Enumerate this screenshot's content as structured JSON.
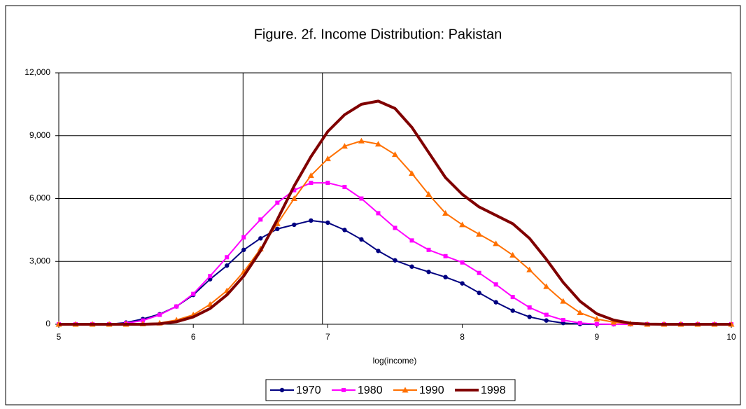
{
  "chart_data": {
    "type": "line",
    "title": "Figure. 2f. Income Distribution: Pakistan",
    "x_label": "log(income)",
    "x": [
      5,
      5.125,
      5.25,
      5.375,
      5.5,
      5.625,
      5.75,
      5.875,
      6,
      6.125,
      6.25,
      6.375,
      6.5,
      6.625,
      6.75,
      6.875,
      7,
      7.125,
      7.25,
      7.375,
      7.5,
      7.625,
      7.75,
      7.875,
      8,
      8.125,
      8.25,
      8.375,
      8.5,
      8.625,
      8.75,
      8.875,
      9,
      9.125,
      9.25,
      9.375,
      9.5,
      9.625,
      9.75,
      9.875,
      10
    ],
    "series": [
      {
        "name": "1970",
        "color": "#000080",
        "marker": "circle",
        "values": [
          0,
          0,
          0,
          0,
          80,
          250,
          480,
          850,
          1400,
          2150,
          2800,
          3550,
          4100,
          4550,
          4750,
          4950,
          4850,
          4500,
          4050,
          3500,
          3050,
          2750,
          2500,
          2250,
          1950,
          1500,
          1050,
          650,
          350,
          180,
          60,
          10,
          0,
          0,
          0,
          0,
          0,
          0,
          0,
          0,
          0
        ]
      },
      {
        "name": "1980",
        "color": "#ff00ff",
        "marker": "square",
        "values": [
          0,
          0,
          0,
          0,
          50,
          180,
          450,
          850,
          1450,
          2300,
          3200,
          4150,
          5000,
          5800,
          6400,
          6750,
          6750,
          6550,
          6000,
          5300,
          4600,
          4000,
          3550,
          3250,
          2950,
          2450,
          1900,
          1300,
          800,
          450,
          200,
          60,
          10,
          0,
          0,
          0,
          0,
          0,
          0,
          0,
          0
        ]
      },
      {
        "name": "1990",
        "color": "#ff7000",
        "marker": "triangle",
        "values": [
          0,
          0,
          0,
          0,
          0,
          20,
          60,
          200,
          450,
          950,
          1600,
          2500,
          3600,
          4800,
          6000,
          7100,
          7900,
          8500,
          8750,
          8600,
          8100,
          7200,
          6200,
          5300,
          4750,
          4300,
          3850,
          3300,
          2600,
          1800,
          1100,
          550,
          250,
          100,
          30,
          0,
          0,
          0,
          0,
          0,
          0
        ]
      },
      {
        "name": "1998",
        "color": "#800000",
        "marker": "none",
        "values": [
          0,
          0,
          0,
          0,
          0,
          0,
          20,
          120,
          350,
          750,
          1400,
          2300,
          3500,
          5000,
          6600,
          8000,
          9200,
          10000,
          10500,
          10650,
          10300,
          9400,
          8200,
          7000,
          6200,
          5600,
          5200,
          4800,
          4100,
          3100,
          2000,
          1100,
          500,
          200,
          50,
          10,
          0,
          0,
          0,
          0,
          0
        ]
      }
    ],
    "xlim": [
      5,
      10
    ],
    "xticks": [
      5,
      6,
      7,
      8,
      9,
      10
    ],
    "ylim": [
      0,
      12000
    ],
    "yticks": [
      0,
      {
        "value": 3000,
        "label": "3,000"
      },
      {
        "value": 6000,
        "label": "6,000"
      },
      {
        "value": 9000,
        "label": "9,000"
      },
      {
        "value": 12000,
        "label": "12,000"
      }
    ],
    "vlines": [
      6.37,
      6.96
    ],
    "grid": true,
    "legend": "bottom"
  }
}
